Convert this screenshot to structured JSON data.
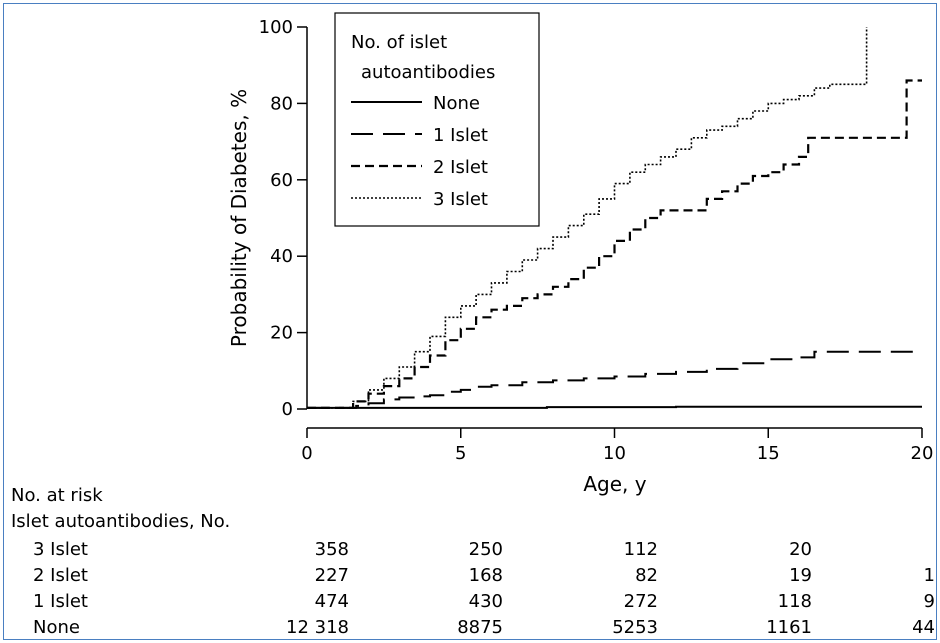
{
  "chart_data": {
    "type": "line",
    "xlabel": "Age, y",
    "ylabel": "Probability of Diabetes, %",
    "xlim": [
      0,
      20
    ],
    "ylim": [
      0,
      100
    ],
    "xticks": [
      0,
      5,
      10,
      15,
      20
    ],
    "yticks": [
      0,
      20,
      40,
      60,
      80,
      100
    ],
    "grid": false,
    "legend": {
      "title_lines": [
        "No. of islet",
        "autoantibodies"
      ],
      "placement": "top-left",
      "entries": [
        "None",
        "1 Islet",
        "2 Islet",
        "3 Islet"
      ]
    },
    "series": [
      {
        "name": "None",
        "style": "solid",
        "points": [
          [
            0,
            0.3
          ],
          [
            7.8,
            0.3
          ],
          [
            7.8,
            0.5
          ],
          [
            12,
            0.5
          ],
          [
            12,
            0.6
          ],
          [
            20,
            0.6
          ]
        ]
      },
      {
        "name": "1 Islet",
        "style": "longdash",
        "points": [
          [
            0,
            0.3
          ],
          [
            1.2,
            0.3
          ],
          [
            1.6,
            0.8
          ],
          [
            2,
            1.5
          ],
          [
            2.5,
            2.5
          ],
          [
            3,
            3
          ],
          [
            3.5,
            3.3
          ],
          [
            4,
            3.6
          ],
          [
            4.5,
            4.5
          ],
          [
            5,
            5
          ],
          [
            5.5,
            5.8
          ],
          [
            6,
            6.2
          ],
          [
            7,
            7
          ],
          [
            8,
            7.5
          ],
          [
            9,
            8
          ],
          [
            10,
            8.5
          ],
          [
            11,
            9.2
          ],
          [
            12,
            9.7
          ],
          [
            13,
            10.5
          ],
          [
            14,
            12
          ],
          [
            15,
            13
          ],
          [
            16,
            13.5
          ],
          [
            16.5,
            15
          ],
          [
            20,
            15
          ]
        ]
      },
      {
        "name": "2 Islet",
        "style": "dash",
        "points": [
          [
            0,
            0.3
          ],
          [
            1.2,
            0.3
          ],
          [
            1.5,
            2
          ],
          [
            2,
            4
          ],
          [
            2.5,
            6
          ],
          [
            3,
            8
          ],
          [
            3.5,
            11
          ],
          [
            4,
            14
          ],
          [
            4.5,
            18
          ],
          [
            5,
            21
          ],
          [
            5.5,
            24
          ],
          [
            6,
            26
          ],
          [
            6.5,
            27
          ],
          [
            7,
            29
          ],
          [
            7.5,
            30
          ],
          [
            8,
            32
          ],
          [
            8.5,
            34
          ],
          [
            9,
            37
          ],
          [
            9.5,
            40
          ],
          [
            10,
            44
          ],
          [
            10.5,
            47
          ],
          [
            11,
            50
          ],
          [
            11.5,
            52
          ],
          [
            12,
            52
          ],
          [
            12.5,
            52
          ],
          [
            13,
            55
          ],
          [
            13.5,
            57
          ],
          [
            14,
            59
          ],
          [
            14.5,
            61
          ],
          [
            15,
            62
          ],
          [
            15.5,
            64
          ],
          [
            16,
            66
          ],
          [
            16.3,
            71
          ],
          [
            19.5,
            71
          ],
          [
            19.5,
            86
          ],
          [
            20,
            86
          ]
        ]
      },
      {
        "name": "3 Islet",
        "style": "dotted",
        "points": [
          [
            0,
            0.3
          ],
          [
            1.2,
            0.3
          ],
          [
            1.5,
            2
          ],
          [
            2,
            5
          ],
          [
            2.5,
            8
          ],
          [
            3,
            11
          ],
          [
            3.5,
            15
          ],
          [
            4,
            19
          ],
          [
            4.5,
            24
          ],
          [
            5,
            27
          ],
          [
            5.5,
            30
          ],
          [
            6,
            33
          ],
          [
            6.5,
            36
          ],
          [
            7,
            39
          ],
          [
            7.5,
            42
          ],
          [
            8,
            45
          ],
          [
            8.5,
            48
          ],
          [
            9,
            51
          ],
          [
            9.5,
            55
          ],
          [
            10,
            59
          ],
          [
            10.5,
            62
          ],
          [
            11,
            64
          ],
          [
            11.5,
            66
          ],
          [
            12,
            68
          ],
          [
            12.5,
            71
          ],
          [
            13,
            73
          ],
          [
            13.5,
            74
          ],
          [
            14,
            76
          ],
          [
            14.5,
            78
          ],
          [
            15,
            80
          ],
          [
            15.5,
            81
          ],
          [
            16,
            82
          ],
          [
            16.5,
            84
          ],
          [
            17,
            85
          ],
          [
            18.2,
            85
          ],
          [
            18.2,
            100
          ]
        ]
      }
    ],
    "at_risk": {
      "title": "No. at risk",
      "subtitle": "Islet autoantibodies, No.",
      "rows": [
        {
          "label": "3 Islet",
          "values": [
            "358",
            "250",
            "112",
            "20",
            ""
          ]
        },
        {
          "label": "2 Islet",
          "values": [
            "227",
            "168",
            "82",
            "19",
            "1"
          ]
        },
        {
          "label": "1 Islet",
          "values": [
            "474",
            "430",
            "272",
            "118",
            "9"
          ]
        },
        {
          "label": "None",
          "values": [
            "12 318",
            "8875",
            "5253",
            "1161",
            "44"
          ]
        }
      ]
    }
  }
}
